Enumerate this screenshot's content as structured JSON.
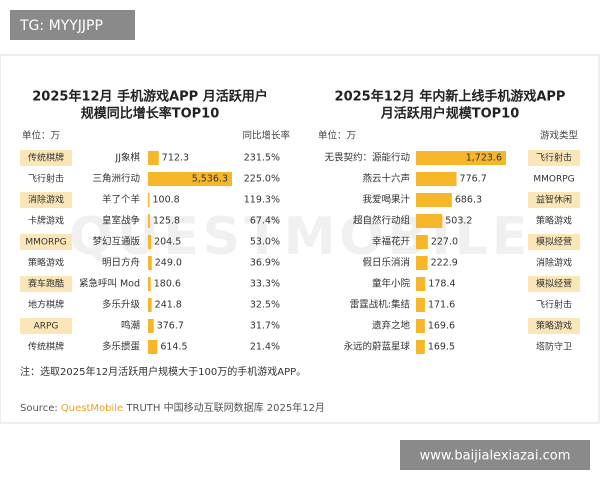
{
  "watermark_top": "TG: MYYJJPP",
  "watermark_bottom": "www.baijialexiazai.com",
  "background_mark": "QUESTMOBILE",
  "chart_data": [
    {
      "type": "bar",
      "title_lines": [
        "2025年12月 手机游戏APP 月活跃用户",
        "规模同比增长率TOP10"
      ],
      "unit_label": "单位：万",
      "extra_header": "同比增长率",
      "color": "#f5b62a",
      "categories": [
        "JJ象棋",
        "三角洲行动",
        "羊了个羊",
        "皇室战争",
        "梦幻互通版",
        "明日方舟",
        "紧急呼叫 Mod",
        "多乐升级",
        "鸣潮",
        "多乐掼蛋"
      ],
      "genres": [
        "传统棋牌",
        "飞行射击",
        "消除游戏",
        "卡牌游戏",
        "MMORPG",
        "策略游戏",
        "赛车跑酷",
        "地方棋牌",
        "ARPG",
        "传统棋牌"
      ],
      "values": [
        712.3,
        5536.3,
        100.8,
        125.8,
        204.5,
        249.0,
        180.6,
        241.8,
        376.7,
        614.5
      ],
      "value_labels": [
        "712.3",
        "5,536.3",
        "100.8",
        "125.8",
        "204.5",
        "249.0",
        "180.6",
        "241.8",
        "376.7",
        "614.5"
      ],
      "extra": [
        "231.5%",
        "225.0%",
        "119.3%",
        "67.4%",
        "53.0%",
        "36.9%",
        "33.3%",
        "32.5%",
        "31.7%",
        "21.4%"
      ]
    },
    {
      "type": "bar",
      "title_lines": [
        "2025年12月 年内新上线手机游戏APP",
        "月活跃用户规模TOP10"
      ],
      "unit_label": "单位：万",
      "extra_header": "游戏类型",
      "color": "#f5b62a",
      "categories": [
        "无畏契约：源能行动",
        "燕云十六声",
        "我爱喝果汁",
        "超自然行动组",
        "幸福花开",
        "假日乐消消",
        "童年小院",
        "雷霆战机:集结",
        "遗弃之地",
        "永远的蔚蓝星球"
      ],
      "genres": [
        "飞行射击",
        "MMORPG",
        "益智休闲",
        "策略游戏",
        "模拟经营",
        "消除游戏",
        "模拟经营",
        "飞行射击",
        "策略游戏",
        "塔防守卫"
      ],
      "values": [
        1723.6,
        776.7,
        686.3,
        503.2,
        227.0,
        222.9,
        178.4,
        171.6,
        169.6,
        169.5
      ],
      "value_labels": [
        "1,723.6",
        "776.7",
        "686.3",
        "503.2",
        "227.0",
        "222.9",
        "178.4",
        "171.6",
        "169.6",
        "169.5"
      ]
    }
  ],
  "note": "注：选取2025年12月活跃用户规模大于100万的手机游戏APP。",
  "source_label": "Source:",
  "source_brand": "QuestMobile",
  "source_rest": "TRUTH 中国移动互联网数据库 2025年12月"
}
